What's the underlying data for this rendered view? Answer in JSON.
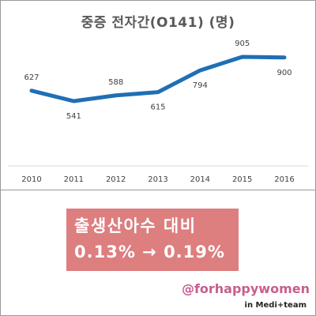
{
  "chart_data": {
    "type": "line",
    "title": "중증 전자간(O141) (명)",
    "xlabel": "",
    "ylabel": "",
    "x": [
      "2010",
      "2011",
      "2012",
      "2013",
      "2014",
      "2015",
      "2016"
    ],
    "series": [
      {
        "values": [
          627,
          541,
          588,
          615,
          794,
          905,
          900
        ]
      }
    ],
    "ylim": [
      400,
      1000
    ],
    "grid": false,
    "line_color": "#1f6fb4"
  },
  "banner": {
    "line1": "출생산아수 대비",
    "line2": "0.13% → 0.19%",
    "color": "#dd7e7f"
  },
  "footer": {
    "handle": "@forhappywomen",
    "brand": "in Medi+team"
  }
}
